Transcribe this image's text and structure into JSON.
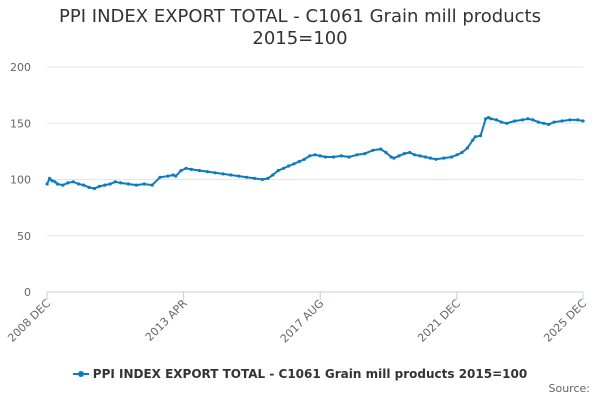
{
  "chart_data": {
    "type": "line",
    "title_lines": [
      "PPI INDEX EXPORT TOTAL - C1061 Grain mill products",
      "2015=100"
    ],
    "xlabel": "",
    "ylabel": "",
    "ylim": [
      0,
      200
    ],
    "yticks": [
      0,
      50,
      100,
      150,
      200
    ],
    "xticks": [
      {
        "label": "2008 DEC",
        "t": 2008.917
      },
      {
        "label": "2013 APR",
        "t": 2013.25
      },
      {
        "label": "2017 AUG",
        "t": 2017.583
      },
      {
        "label": "2021 DEC",
        "t": 2021.917
      },
      {
        "label": "2025 DEC",
        "t": 2025.917
      }
    ],
    "xlim": [
      2008.917,
      2025.917
    ],
    "grid": true,
    "legend_position": "bottom",
    "color": "#0f7ac0",
    "series": [
      {
        "name": "PPI INDEX EXPORT TOTAL - C1061 Grain mill products 2015=100",
        "x": [
          2008.92,
          2009.0,
          2009.08,
          2009.17,
          2009.25,
          2009.42,
          2009.58,
          2009.75,
          2009.92,
          2010.08,
          2010.25,
          2010.42,
          2010.58,
          2010.75,
          2010.92,
          2011.08,
          2011.25,
          2011.5,
          2011.75,
          2012.0,
          2012.25,
          2012.5,
          2012.75,
          2012.92,
          2013.0,
          2013.17,
          2013.33,
          2013.5,
          2013.75,
          2014.0,
          2014.25,
          2014.5,
          2014.75,
          2015.0,
          2015.25,
          2015.5,
          2015.75,
          2015.92,
          2016.08,
          2016.25,
          2016.42,
          2016.58,
          2016.75,
          2016.92,
          2017.08,
          2017.25,
          2017.42,
          2017.58,
          2017.75,
          2018.0,
          2018.25,
          2018.5,
          2018.75,
          2019.0,
          2019.25,
          2019.5,
          2019.67,
          2019.83,
          2019.92,
          2020.08,
          2020.25,
          2020.42,
          2020.58,
          2020.75,
          2020.92,
          2021.08,
          2021.25,
          2021.5,
          2021.75,
          2021.92,
          2022.08,
          2022.25,
          2022.42,
          2022.5,
          2022.67,
          2022.83,
          2022.92,
          2023.0,
          2023.17,
          2023.33,
          2023.5,
          2023.75,
          2024.0,
          2024.17,
          2024.33,
          2024.5,
          2024.67,
          2024.83,
          2025.0,
          2025.25,
          2025.5,
          2025.75,
          2025.92
        ],
        "values": [
          96,
          101,
          99,
          98,
          96,
          95,
          97,
          98,
          96,
          95,
          93,
          92,
          94,
          95,
          96,
          98,
          97,
          96,
          95,
          96,
          95,
          102,
          103,
          104,
          103,
          108,
          110,
          109,
          108,
          107,
          106,
          105,
          104,
          103,
          102,
          101,
          100,
          101,
          104,
          108,
          110,
          112,
          114,
          116,
          118,
          121,
          122,
          121,
          120,
          120,
          121,
          120,
          122,
          123,
          126,
          127,
          124,
          120,
          119,
          121,
          123,
          124,
          122,
          121,
          120,
          119,
          118,
          119,
          120,
          122,
          124,
          128,
          135,
          138,
          139,
          154,
          155,
          154,
          153,
          151,
          150,
          152,
          153,
          154,
          153,
          151,
          150,
          149,
          151,
          152,
          153,
          153,
          152
        ]
      }
    ]
  },
  "legend": {
    "label": "PPI INDEX EXPORT TOTAL - C1061 Grain mill products 2015=100"
  },
  "source": {
    "label": "Source:"
  }
}
